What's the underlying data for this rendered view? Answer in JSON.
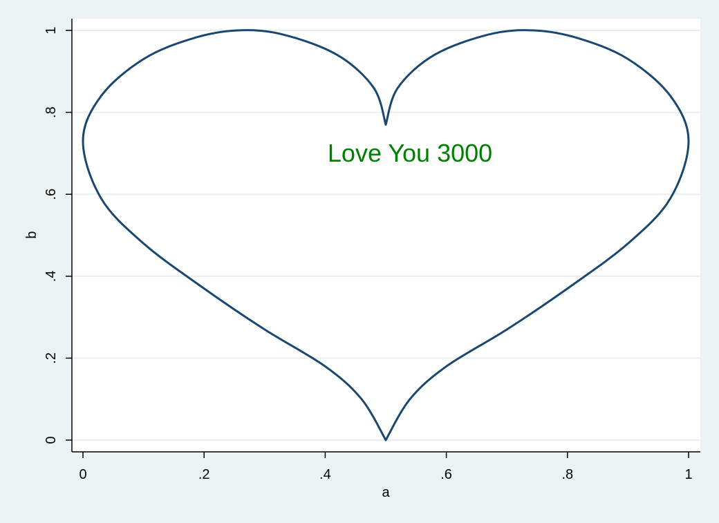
{
  "chart_data": {
    "type": "line",
    "title": "",
    "xlabel": "a",
    "ylabel": "b",
    "xlim": [
      0,
      1
    ],
    "ylim": [
      0,
      1
    ],
    "xticks": [
      {
        "value": 0,
        "label": "0"
      },
      {
        "value": 0.2,
        "label": ".2"
      },
      {
        "value": 0.4,
        "label": ".4"
      },
      {
        "value": 0.6,
        "label": ".6"
      },
      {
        "value": 0.8,
        "label": ".8"
      },
      {
        "value": 1,
        "label": "1"
      }
    ],
    "yticks": [
      {
        "value": 0,
        "label": "0"
      },
      {
        "value": 0.2,
        "label": ".2"
      },
      {
        "value": 0.4,
        "label": ".4"
      },
      {
        "value": 0.6,
        "label": ".6"
      },
      {
        "value": 0.8,
        "label": ".8"
      },
      {
        "value": 1,
        "label": "1"
      }
    ],
    "grid": "horizontal",
    "series": [
      {
        "points": [
          [
            0.5,
            0.0
          ],
          [
            0.46,
            0.1
          ],
          [
            0.4,
            0.18
          ],
          [
            0.3,
            0.27
          ],
          [
            0.2,
            0.37
          ],
          [
            0.1,
            0.48
          ],
          [
            0.03,
            0.59
          ],
          [
            0.0,
            0.73
          ],
          [
            0.03,
            0.84
          ],
          [
            0.1,
            0.93
          ],
          [
            0.18,
            0.98
          ],
          [
            0.255,
            1.0
          ],
          [
            0.33,
            0.99
          ],
          [
            0.42,
            0.94
          ],
          [
            0.48,
            0.86
          ],
          [
            0.5,
            0.77
          ],
          [
            0.52,
            0.86
          ],
          [
            0.58,
            0.94
          ],
          [
            0.67,
            0.99
          ],
          [
            0.745,
            1.0
          ],
          [
            0.82,
            0.98
          ],
          [
            0.9,
            0.93
          ],
          [
            0.97,
            0.84
          ],
          [
            1.0,
            0.73
          ],
          [
            0.97,
            0.59
          ],
          [
            0.9,
            0.48
          ],
          [
            0.8,
            0.37
          ],
          [
            0.7,
            0.27
          ],
          [
            0.6,
            0.18
          ],
          [
            0.54,
            0.1
          ],
          [
            0.5,
            0.0
          ]
        ]
      }
    ],
    "annotations": [
      {
        "text": "Love You 3000",
        "x": 0.54,
        "y": 0.7
      }
    ]
  },
  "colors": {
    "background": "#eaf2f3",
    "plot_background": "#ffffff",
    "gridline": "#e6eef0",
    "line": "#1a476f",
    "annotation": "#008000",
    "axis": "#000000"
  }
}
